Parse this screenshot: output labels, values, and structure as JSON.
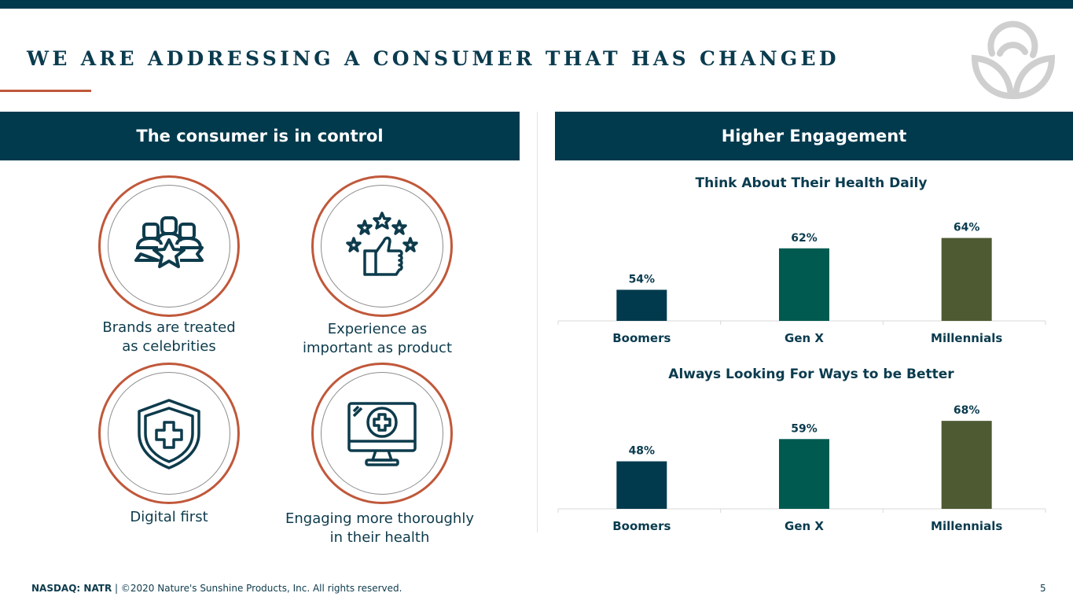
{
  "slide": {
    "title": "WE ARE ADDRESSING A CONSUMER THAT HAS CHANGED",
    "logo_icon": "natures-sunshine-leaf-logo",
    "page_number": "5"
  },
  "left_panel": {
    "header": "The consumer is in control",
    "items": [
      {
        "icon": "celebrity-group-star-icon",
        "caption_line1": "Brands are treated",
        "caption_line2": "as celebrities"
      },
      {
        "icon": "thumbs-up-stars-icon",
        "caption_line1": "Experience as",
        "caption_line2": "important as product"
      },
      {
        "icon": "shield-cross-icon",
        "caption_line1": "Digital first",
        "caption_line2": ""
      },
      {
        "icon": "monitor-health-cross-icon",
        "caption_line1": "Engaging more thoroughly",
        "caption_line2": "in their health"
      }
    ]
  },
  "right_panel": {
    "header": "Higher Engagement"
  },
  "colors": {
    "navy": "#023a4d",
    "accent_orange": "#c0583a",
    "boomers": "#023a4d",
    "genx": "#005a50",
    "millennials": "#4e5a32"
  },
  "footer": {
    "ticker": "NASDAQ: NATR",
    "copyright": " | ©2020 Nature's Sunshine Products, Inc. All rights reserved."
  },
  "chart_data": [
    {
      "type": "bar",
      "title": "Think About Their Health Daily",
      "categories": [
        "Boomers",
        "Gen X",
        "Millennials"
      ],
      "values": [
        54,
        62,
        64
      ],
      "labels": [
        "54%",
        "62%",
        "64%"
      ],
      "xlabel": "",
      "ylabel": "",
      "ylim": [
        48,
        65
      ],
      "grid": false,
      "legend": "none"
    },
    {
      "type": "bar",
      "title": "Always Looking For Ways to be Better",
      "categories": [
        "Boomers",
        "Gen X",
        "Millennials"
      ],
      "values": [
        48,
        59,
        68
      ],
      "labels": [
        "48%",
        "59%",
        "68%"
      ],
      "xlabel": "",
      "ylabel": "",
      "ylim": [
        24.5,
        70
      ],
      "grid": false,
      "legend": "none"
    }
  ]
}
